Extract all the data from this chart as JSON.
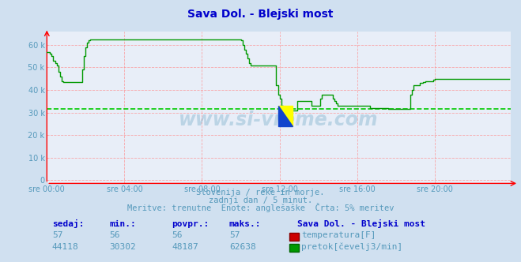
{
  "title": "Sava Dol. - Blejski most",
  "title_color": "#0000cc",
  "bg_color": "#d0e0f0",
  "plot_bg_color": "#e8eef8",
  "grid_color": "#ff8888",
  "xlabel_color": "#5599bb",
  "ylabel_ticks": [
    "0",
    "10 k",
    "20 k",
    "30 k",
    "40 k",
    "50 k",
    "60 k"
  ],
  "ylabel_values": [
    0,
    10000,
    20000,
    30000,
    40000,
    50000,
    60000
  ],
  "ylim": [
    -1500,
    66000
  ],
  "xlim": [
    0,
    287
  ],
  "xtick_positions": [
    0,
    48,
    96,
    144,
    192,
    240
  ],
  "xtick_labels": [
    "sre 00:00",
    "sre 04:00",
    "sre 08:00",
    "sre 12:00",
    "sre 16:00",
    "sre 20:00"
  ],
  "avg_line_value": 31500,
  "avg_line_color": "#00cc00",
  "flow_line_color": "#009900",
  "watermark": "www.si-vreme.com",
  "watermark_color": "#5599bb",
  "subtitle1": "Slovenija / reke in morje.",
  "subtitle2": "zadnji dan / 5 minut.",
  "subtitle3": "Meritve: trenutne  Enote: anglešaške  Črta: 5% meritev",
  "subtitle_color": "#5599bb",
  "footer_headers": [
    "sedaj:",
    "min.:",
    "povpr.:",
    "maks.:"
  ],
  "footer_temp": [
    "57",
    "56",
    "56",
    "57"
  ],
  "footer_flow": [
    "44118",
    "30302",
    "48187",
    "62638"
  ],
  "footer_color": "#0000cc",
  "footer_values_color": "#5599bb",
  "station_label": "Sava Dol. - Blejski most",
  "legend_temp": "temperatura[F]",
  "legend_flow": "pretok[čevelj3/min]",
  "flow_data": [
    57000,
    57000,
    56000,
    55000,
    53000,
    52000,
    51000,
    48000,
    46000,
    44000,
    43500,
    43500,
    43500,
    43500,
    43500,
    43500,
    43500,
    43500,
    43500,
    43500,
    43500,
    43500,
    49000,
    55000,
    59000,
    61000,
    62000,
    62500,
    62500,
    62500,
    62500,
    62500,
    62500,
    62500,
    62500,
    62500,
    62500,
    62500,
    62500,
    62500,
    62500,
    62500,
    62500,
    62500,
    62500,
    62500,
    62500,
    62500,
    62500,
    62500,
    62500,
    62500,
    62500,
    62500,
    62500,
    62500,
    62500,
    62500,
    62500,
    62500,
    62500,
    62500,
    62500,
    62500,
    62500,
    62500,
    62500,
    62500,
    62500,
    62500,
    62500,
    62500,
    62500,
    62500,
    62500,
    62500,
    62500,
    62500,
    62500,
    62500,
    62500,
    62500,
    62500,
    62500,
    62500,
    62500,
    62500,
    62500,
    62500,
    62500,
    62500,
    62500,
    62500,
    62500,
    62500,
    62500,
    62500,
    62500,
    62500,
    62500,
    62500,
    62500,
    62500,
    62500,
    62500,
    62500,
    62500,
    62500,
    62500,
    62500,
    62500,
    62500,
    62500,
    62500,
    62500,
    62500,
    62500,
    62500,
    62500,
    62500,
    62000,
    60000,
    58000,
    56000,
    54000,
    52000,
    51000,
    51000,
    51000,
    51000,
    51000,
    51000,
    51000,
    51000,
    51000,
    51000,
    51000,
    51000,
    51000,
    51000,
    51000,
    51000,
    42000,
    38000,
    36000,
    33000,
    32000,
    31500,
    31000,
    31000,
    31000,
    31000,
    31000,
    31000,
    31000,
    35000,
    35000,
    35000,
    35000,
    35000,
    35000,
    35000,
    35000,
    35000,
    33000,
    33000,
    33000,
    33000,
    33000,
    36000,
    38000,
    38000,
    38000,
    38000,
    38000,
    38000,
    38000,
    36000,
    35000,
    34000,
    33000,
    33000,
    33000,
    33000,
    33000,
    33000,
    33000,
    33000,
    33000,
    33000,
    33000,
    33000,
    33000,
    33000,
    33000,
    33000,
    33000,
    33000,
    33000,
    33000,
    32000,
    32000,
    32000,
    32000,
    32000,
    32000,
    32000,
    32000,
    32000,
    32000,
    32000,
    31500,
    31500,
    31500,
    31500,
    31500,
    31500,
    31500,
    31500,
    31500,
    31500,
    31500,
    31500,
    31500,
    31500,
    38000,
    40000,
    42000,
    42000,
    42000,
    42000,
    43000,
    43000,
    43500,
    44000,
    44000,
    44000,
    44000,
    44000,
    44500,
    45000,
    45000,
    45000,
    45000,
    45000,
    45000,
    45000,
    45000,
    45000,
    45000,
    45000,
    45000,
    45000,
    45000,
    45000,
    45000,
    45000,
    45000,
    45000,
    45000,
    45000,
    45000,
    45000,
    45000,
    45000,
    45000,
    45000,
    45000,
    45000,
    45000,
    45000,
    45000,
    45000,
    45000,
    45000,
    45000,
    45000,
    45000,
    45000,
    45000,
    45000,
    45000,
    45000,
    45000,
    45000,
    45000,
    45000
  ]
}
